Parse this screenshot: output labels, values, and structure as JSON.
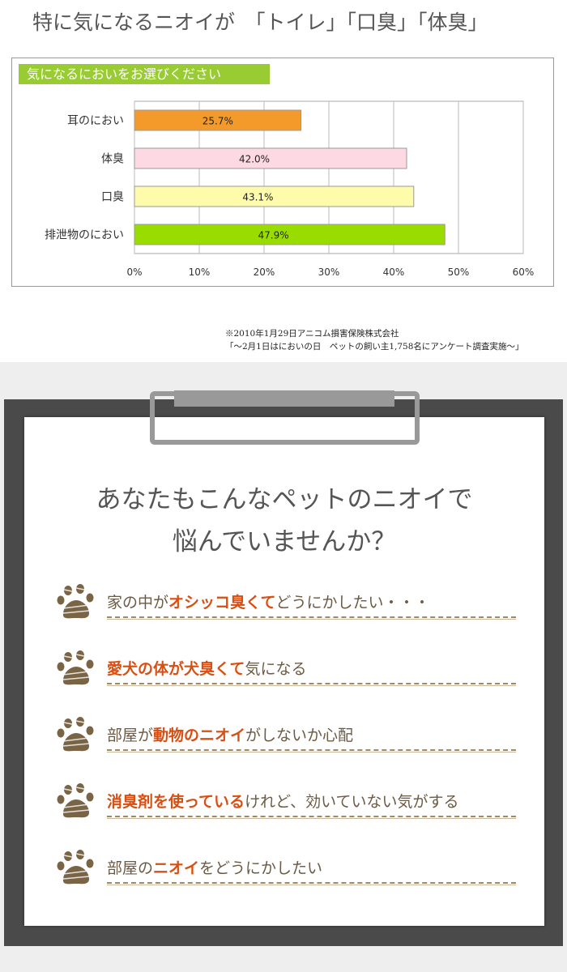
{
  "headline": "特に気になるニオイが　「トイレ」「口臭」「体臭」",
  "chart_data": {
    "type": "bar",
    "orientation": "horizontal",
    "title": "気になるにおいをお選びください",
    "categories": [
      "耳のにおい",
      "体臭",
      "口臭",
      "排泄物のにおい"
    ],
    "values": [
      25.7,
      42.0,
      43.1,
      47.9
    ],
    "data_labels": [
      "25.7%",
      "42.0%",
      "43.1%",
      "47.9%"
    ],
    "colors": [
      "#f39a2b",
      "#fdd9e3",
      "#fefcaa",
      "#99dd00"
    ],
    "xlim": [
      0,
      60
    ],
    "xticks": [
      "0%",
      "10%",
      "20%",
      "30%",
      "40%",
      "50%",
      "60%"
    ],
    "grid": true,
    "xlabel": "",
    "ylabel": ""
  },
  "source_note": [
    "※2010年1月29日アニコム損害保険株式会社",
    "「～2月1日はにおいの日　ペットの飼い主1,758名にアンケート調査実施～」"
  ],
  "question": [
    "あなたもこんなペットのニオイで",
    "悩んでいませんか？"
  ],
  "items": [
    [
      {
        "t": "家の中が",
        "h": false
      },
      {
        "t": "オシッコ臭くて",
        "h": true
      },
      {
        "t": "どうにかしたい・・・",
        "h": false
      }
    ],
    [
      {
        "t": "愛犬の体が犬臭くて",
        "h": true
      },
      {
        "t": "気になる",
        "h": false
      }
    ],
    [
      {
        "t": "部屋が",
        "h": false
      },
      {
        "t": "動物のニオイ",
        "h": true
      },
      {
        "t": "がしないか心配",
        "h": false
      }
    ],
    [
      {
        "t": "消臭剤を使っている",
        "h": true
      },
      {
        "t": "けれど、効いていない気がする",
        "h": false
      }
    ],
    [
      {
        "t": "部屋の",
        "h": false
      },
      {
        "t": "ニオイ",
        "h": true
      },
      {
        "t": "をどうにかしたい",
        "h": false
      }
    ]
  ],
  "icons": {
    "item": "paw-print-icon"
  },
  "colors": {
    "accent": "#d94f12",
    "text": "#6b5a44",
    "paw": "#7a6446"
  }
}
